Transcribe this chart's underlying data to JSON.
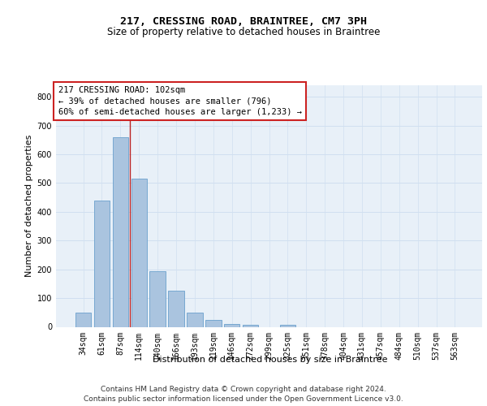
{
  "title1": "217, CRESSING ROAD, BRAINTREE, CM7 3PH",
  "title2": "Size of property relative to detached houses in Braintree",
  "xlabel": "Distribution of detached houses by size in Braintree",
  "ylabel": "Number of detached properties",
  "bar_labels": [
    "34sqm",
    "61sqm",
    "87sqm",
    "114sqm",
    "140sqm",
    "166sqm",
    "193sqm",
    "219sqm",
    "246sqm",
    "272sqm",
    "299sqm",
    "325sqm",
    "351sqm",
    "378sqm",
    "404sqm",
    "431sqm",
    "457sqm",
    "484sqm",
    "510sqm",
    "537sqm",
    "563sqm"
  ],
  "bar_values": [
    50,
    440,
    660,
    515,
    193,
    127,
    50,
    25,
    10,
    6,
    0,
    6,
    0,
    0,
    0,
    0,
    0,
    0,
    0,
    0,
    0
  ],
  "bar_color": "#aac4df",
  "bar_edge_color": "#6aa0cc",
  "grid_color": "#d0dff0",
  "background_color": "#e8f0f8",
  "vline_x": 2.5,
  "vline_color": "#bb2222",
  "annotation_text": "217 CRESSING ROAD: 102sqm\n← 39% of detached houses are smaller (796)\n60% of semi-detached houses are larger (1,233) →",
  "annotation_box_color": "#ffffff",
  "annotation_box_edge": "#cc2222",
  "ylim": [
    0,
    840
  ],
  "yticks": [
    0,
    100,
    200,
    300,
    400,
    500,
    600,
    700,
    800
  ],
  "footnote1": "Contains HM Land Registry data © Crown copyright and database right 2024.",
  "footnote2": "Contains public sector information licensed under the Open Government Licence v3.0.",
  "title1_fontsize": 9.5,
  "title2_fontsize": 8.5,
  "ylabel_fontsize": 8,
  "xlabel_fontsize": 8,
  "tick_fontsize": 7,
  "annotation_fontsize": 7.5,
  "footnote_fontsize": 6.5
}
